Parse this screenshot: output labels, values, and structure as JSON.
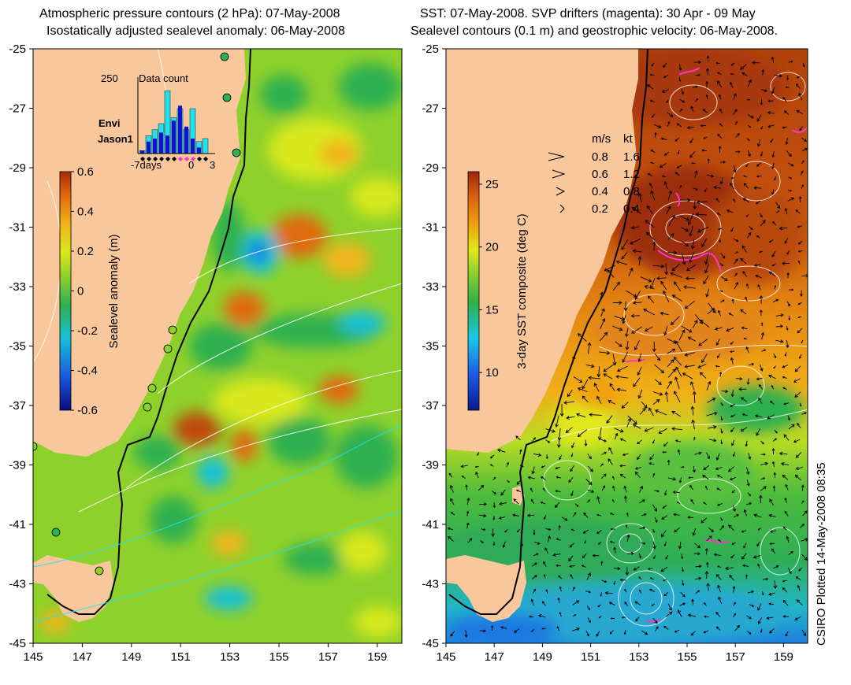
{
  "left_panel": {
    "title_line1": "Atmospheric pressure contours (2 hPa): 07-May-2008",
    "title_line2": "Isostatically adjusted sealevel anomaly: 06-May-2008",
    "colorbar": {
      "label": "Sealevel anomaly (m)",
      "ticks": [
        "0.6",
        "0.4",
        "0.2",
        "0",
        "-0.2",
        "-0.4",
        "-0.6"
      ],
      "range": [
        -0.6,
        0.6
      ]
    },
    "inset": {
      "title": "Data count",
      "y_max_label": "250",
      "x_labels": [
        "-7days",
        "0",
        "3"
      ],
      "legend": [
        {
          "name": "Envi",
          "color": "#22e0f0"
        },
        {
          "name": "Jason1",
          "color": "#1010d0"
        }
      ],
      "envi_counts": [
        10,
        60,
        80,
        100,
        210,
        120,
        150,
        80,
        150,
        40,
        50
      ],
      "jason_counts": [
        10,
        40,
        50,
        70,
        60,
        110,
        160,
        90,
        50,
        20,
        0
      ]
    }
  },
  "right_panel": {
    "title_line1": "SST: 07-May-2008. SVP drifters (magenta): 30 Apr - 09 May",
    "title_line2": "Sealevel contours (0.1 m) and geostrophic velocity: 06-May-2008.",
    "colorbar": {
      "label": "3-day SST composite (deg C)",
      "ticks": [
        "25",
        "20",
        "15",
        "10"
      ],
      "range": [
        7,
        26
      ]
    },
    "velocity_legend": {
      "header_ms": "m/s",
      "header_kt": "kt",
      "rows": [
        {
          "ms": "0.8",
          "kt": "1.6"
        },
        {
          "ms": "0.6",
          "kt": "1.2"
        },
        {
          "ms": "0.4",
          "kt": "0.8"
        },
        {
          "ms": "0.2",
          "kt": "0.4"
        }
      ]
    }
  },
  "map_axes": {
    "lon_ticks": [
      "145",
      "147",
      "149",
      "151",
      "153",
      "155",
      "157",
      "159"
    ],
    "lat_ticks": [
      "-25",
      "-27",
      "-29",
      "-31",
      "-33",
      "-35",
      "-37",
      "-39",
      "-41",
      "-43",
      "-45"
    ],
    "lon_range": [
      145,
      160
    ],
    "lat_range": [
      -45,
      -25
    ]
  },
  "footer": "CSIRO Plotted 14-May-2008 08:35",
  "colors": {
    "land": "#f9c79c",
    "sla_ramp": [
      "#0b0b80",
      "#1a58e0",
      "#16c0d8",
      "#2fb050",
      "#8ed12c",
      "#d8e81a",
      "#f0b41a",
      "#e06a10",
      "#a82a0a"
    ],
    "sst_ramp": [
      "#0a1a8a",
      "#1c5be8",
      "#18c8e8",
      "#2fb04a",
      "#8ed12c",
      "#e0e81a",
      "#f0a010",
      "#d65f10",
      "#9a2808"
    ],
    "drifter": "#ff33cc"
  }
}
